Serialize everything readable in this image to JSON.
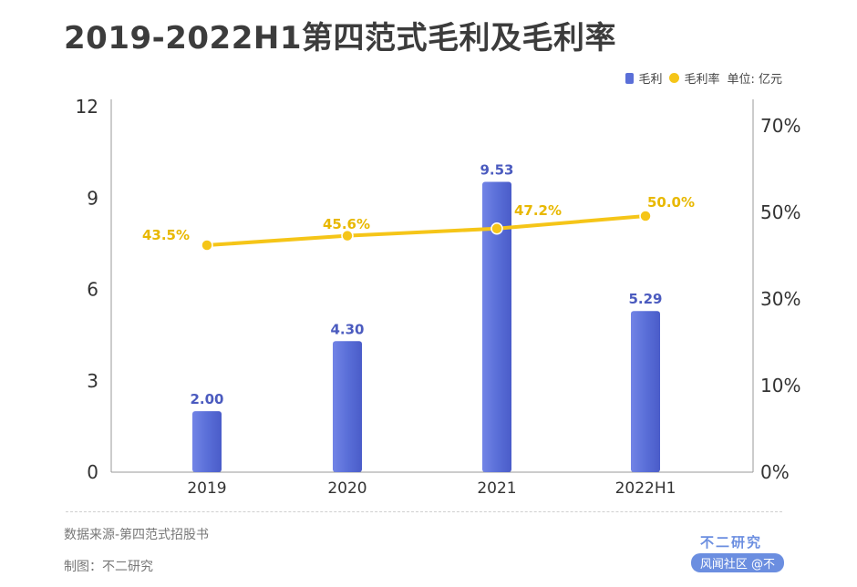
{
  "title": "2019-2022H1第四范式毛利及毛利率",
  "legend": {
    "bar": "毛利",
    "line": "毛利率",
    "unit": "单位: 亿元"
  },
  "footer": {
    "source": "数据来源-第四范式招股书",
    "maker": "制图：不二研究",
    "brand": "不二研究",
    "badge": "风闻社区 @不"
  },
  "colors": {
    "bar": "#5a6fd8",
    "bar_label": "#4b5bbf",
    "line": "#f5c518",
    "line_label": "#e8b800",
    "axis": "#999999"
  },
  "chart_data": {
    "type": "bar",
    "categories": [
      "2019",
      "2020",
      "2021",
      "2022H1"
    ],
    "series": [
      {
        "name": "毛利",
        "type": "bar",
        "axis": "left",
        "values": [
          2.0,
          4.3,
          9.53,
          5.29
        ]
      },
      {
        "name": "毛利率",
        "type": "line",
        "axis": "right",
        "values": [
          43.5,
          45.6,
          47.2,
          50.0
        ]
      }
    ],
    "bar_labels": [
      "2.00",
      "4.30",
      "9.53",
      "5.29"
    ],
    "line_labels": [
      "43.5%",
      "45.6%",
      "47.2%",
      "50.0%"
    ],
    "y_left": {
      "ticks": [
        "0",
        "3",
        "6",
        "9",
        "12"
      ],
      "ylim": [
        0,
        12
      ]
    },
    "y_right": {
      "ticks": [
        "0%",
        "10%",
        "30%",
        "50%",
        "70%"
      ],
      "ylim": [
        0,
        70
      ]
    }
  }
}
